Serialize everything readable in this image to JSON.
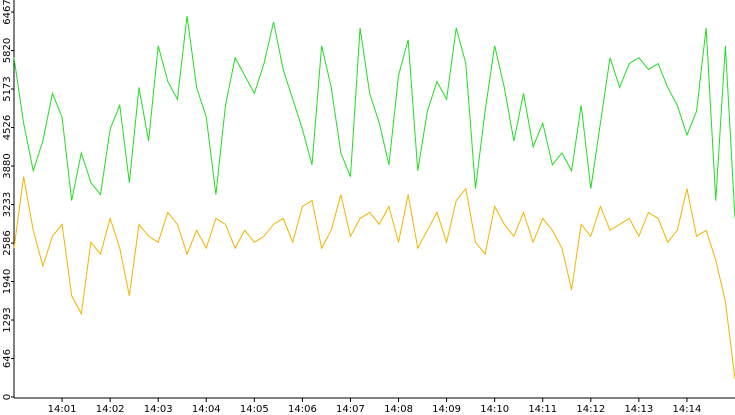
{
  "chart_data": {
    "type": "line",
    "x": [
      0,
      0.2,
      0.4,
      0.6,
      0.8,
      1,
      1.2,
      1.4,
      1.6,
      1.8,
      2,
      2.2,
      2.4,
      2.6,
      2.8,
      3,
      3.2,
      3.4,
      3.6,
      3.8,
      4,
      4.2,
      4.4,
      4.6,
      4.8,
      5,
      5.2,
      5.4,
      5.6,
      5.8,
      6,
      6.2,
      6.4,
      6.6,
      6.8,
      7,
      7.2,
      7.4,
      7.6,
      7.8,
      8,
      8.2,
      8.4,
      8.6,
      8.8,
      9,
      9.2,
      9.4,
      9.6,
      9.8,
      10,
      10.2,
      10.4,
      10.6,
      10.8,
      11,
      11.2,
      11.4,
      11.6,
      11.8,
      12,
      12.2,
      12.4,
      12.6,
      12.8,
      13,
      13.2,
      13.4,
      13.6,
      13.8,
      14,
      14.2,
      14.4,
      14.6,
      14.8,
      15
    ],
    "series": [
      {
        "color": "#22dd22",
        "values": [
          5700,
          4600,
          3800,
          4300,
          5100,
          4700,
          3300,
          4100,
          3600,
          3400,
          4500,
          4900,
          3600,
          5200,
          4300,
          5900,
          5300,
          5000,
          6400,
          5200,
          4700,
          3400,
          4900,
          5700,
          5400,
          5100,
          5600,
          6300,
          5500,
          5000,
          4500,
          3900,
          5900,
          5200,
          4100,
          3700,
          6200,
          5100,
          4600,
          3900,
          5400,
          6000,
          3800,
          4800,
          5300,
          5000,
          6200,
          5600,
          3500,
          4800,
          5900,
          5200,
          4300,
          5100,
          4200,
          4600,
          3900,
          4100,
          3800,
          4900,
          3500,
          4600,
          5700,
          5200,
          5600,
          5700,
          5500,
          5600,
          5200,
          4900,
          4400,
          4800,
          6200,
          3300,
          5900,
          3000
        ]
      },
      {
        "color": "#f0b400",
        "values": [
          2500,
          3700,
          2800,
          2200,
          2700,
          2900,
          1700,
          1400,
          2600,
          2400,
          3000,
          2500,
          1700,
          2900,
          2700,
          2600,
          3100,
          2900,
          2400,
          2800,
          2500,
          3000,
          2900,
          2500,
          2800,
          2600,
          2700,
          2900,
          3000,
          2600,
          3200,
          3300,
          2500,
          2800,
          3400,
          2700,
          3000,
          3100,
          2900,
          3200,
          2600,
          3400,
          2500,
          2800,
          3100,
          2600,
          3300,
          3500,
          2600,
          2400,
          3200,
          2900,
          2700,
          3100,
          2600,
          3000,
          2800,
          2500,
          1800,
          2900,
          2700,
          3200,
          2800,
          2900,
          3000,
          2700,
          3100,
          3000,
          2600,
          2800,
          3500,
          2700,
          2800,
          2300,
          1600,
          300
        ]
      }
    ],
    "xlim": [
      0,
      15
    ],
    "xticks": [
      {
        "value": 1,
        "label": "14:01"
      },
      {
        "value": 2,
        "label": "14:02"
      },
      {
        "value": 3,
        "label": "14:03"
      },
      {
        "value": 4,
        "label": "14:04"
      },
      {
        "value": 5,
        "label": "14:05"
      },
      {
        "value": 6,
        "label": "14:06"
      },
      {
        "value": 7,
        "label": "14:07"
      },
      {
        "value": 8,
        "label": "14:08"
      },
      {
        "value": 9,
        "label": "14:09"
      },
      {
        "value": 10,
        "label": "14:10"
      },
      {
        "value": 11,
        "label": "14:11"
      },
      {
        "value": 12,
        "label": "14:12"
      },
      {
        "value": 13,
        "label": "14:13"
      },
      {
        "value": 14,
        "label": "14:14"
      }
    ],
    "ylim": [
      0,
      6467
    ],
    "yticks": [
      0,
      646,
      1293,
      1940,
      2586,
      3233,
      3880,
      4526,
      5173,
      5820,
      6467
    ]
  }
}
